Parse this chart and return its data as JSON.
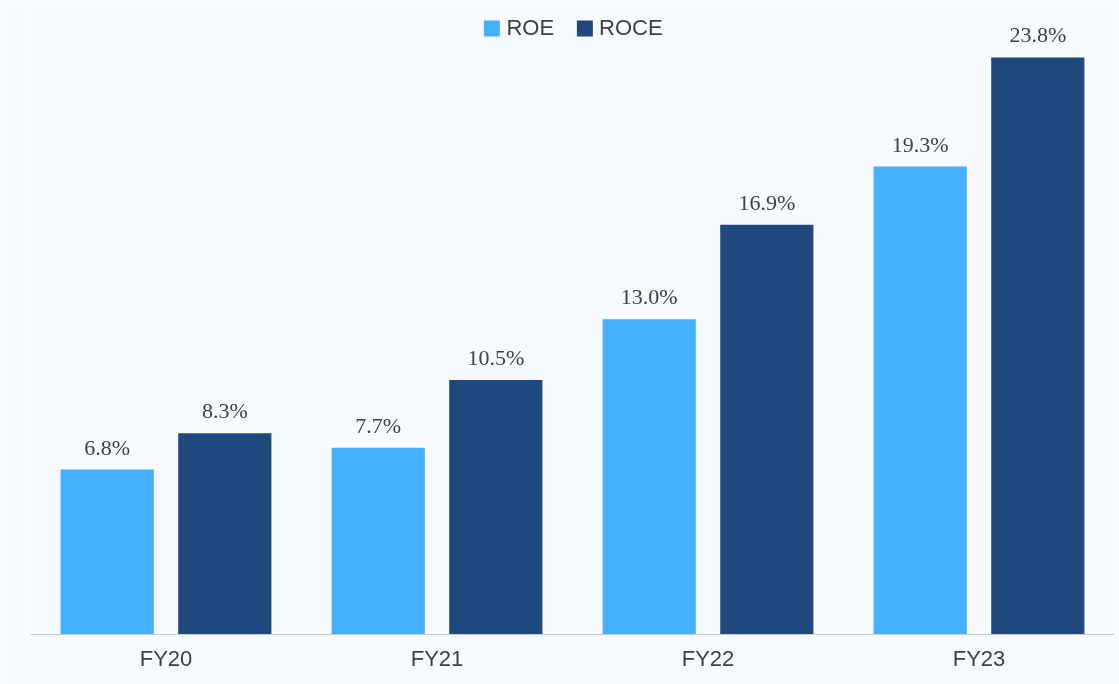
{
  "chart_data": {
    "type": "bar",
    "categories": [
      "FY20",
      "FY21",
      "FY22",
      "FY23"
    ],
    "series": [
      {
        "name": "ROE",
        "color": "#45b0ff",
        "values": [
          6.8,
          7.7,
          13.0,
          19.3
        ],
        "value_labels": [
          "6.8%",
          "7.7%",
          "13.0%",
          "19.3%"
        ]
      },
      {
        "name": "ROCE",
        "color": "#1f497d",
        "values": [
          8.3,
          10.5,
          16.9,
          23.8
        ],
        "value_labels": [
          "8.3%",
          "10.5%",
          "16.9%",
          "23.8%"
        ]
      }
    ],
    "legend": "top",
    "grid": false,
    "tick_labels": "x"
  }
}
